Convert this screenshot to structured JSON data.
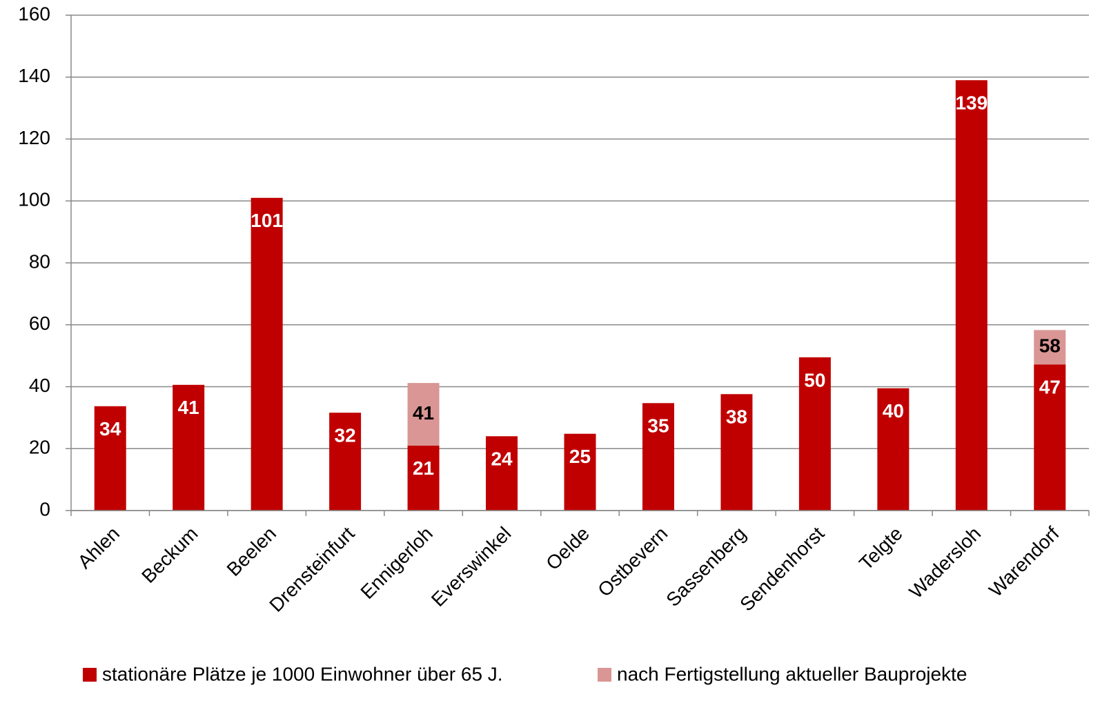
{
  "chart_data": {
    "type": "stacked_bar",
    "categories": [
      "Ahlen",
      "Beckum",
      "Beelen",
      "Drensteinfurt",
      "Ennigerloh",
      "Everswinkel",
      "Oelde",
      "Ostbevern",
      "Sassenberg",
      "Sendenhorst",
      "Telgte",
      "Wadersloh",
      "Warendorf"
    ],
    "series": [
      {
        "name": "stationäre Plätze je 1000 Einwohner über 65 J.",
        "color": "#c00000",
        "label_color": "#ffffff",
        "values": [
          33.7,
          40.6,
          101,
          31.6,
          21,
          24,
          24.8,
          34.7,
          37.6,
          49.5,
          39.5,
          139,
          47.2
        ],
        "value_labels": [
          "34",
          "41",
          "101",
          "32",
          "21",
          "24",
          "25",
          "35",
          "38",
          "50",
          "40",
          "139",
          "47"
        ]
      },
      {
        "name": "nach Fertigstellung aktueller Bauprojekte",
        "color": "#d99694",
        "label_color": "#000000",
        "values": [
          null,
          null,
          null,
          null,
          20.2,
          null,
          null,
          null,
          null,
          null,
          null,
          null,
          11.1
        ]
      }
    ],
    "totals": [
      null,
      null,
      null,
      null,
      41,
      null,
      null,
      null,
      null,
      null,
      null,
      null,
      58
    ],
    "ylim": [
      0,
      160
    ],
    "yticks": [
      0,
      20,
      40,
      60,
      80,
      100,
      120,
      140,
      160
    ],
    "grid": true
  }
}
